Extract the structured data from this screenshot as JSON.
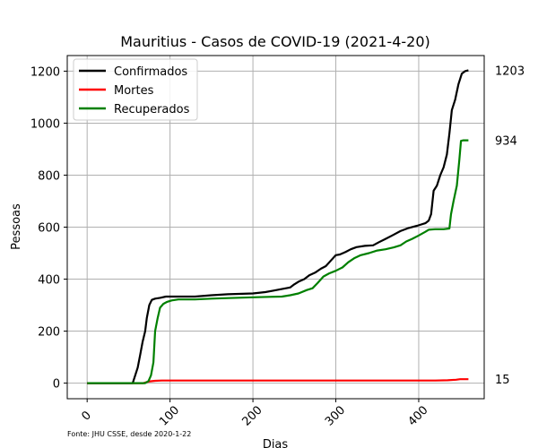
{
  "chart_data": {
    "type": "line",
    "title": "Mauritius - Casos de COVID-19 (2021-4-20)",
    "xlabel": "Dias",
    "ylabel": "Pessoas",
    "source_note": "Fonte: JHU CSSE, desde 2020-1-22",
    "xlim": [
      -24,
      479
    ],
    "ylim": [
      -60,
      1260
    ],
    "xticks": [
      0,
      100,
      200,
      300,
      400
    ],
    "yticks": [
      0,
      200,
      400,
      600,
      800,
      1000,
      1200
    ],
    "grid": true,
    "legend_position": "top-left",
    "series": [
      {
        "name": "Confirmados",
        "color": "#000000",
        "end_label": "1203",
        "points": [
          [
            0,
            0
          ],
          [
            55,
            0
          ],
          [
            58,
            30
          ],
          [
            61,
            60
          ],
          [
            64,
            110
          ],
          [
            67,
            160
          ],
          [
            70,
            200
          ],
          [
            72,
            250
          ],
          [
            75,
            300
          ],
          [
            78,
            320
          ],
          [
            82,
            325
          ],
          [
            88,
            328
          ],
          [
            95,
            333
          ],
          [
            110,
            333
          ],
          [
            130,
            333
          ],
          [
            150,
            338
          ],
          [
            170,
            342
          ],
          [
            200,
            345
          ],
          [
            215,
            350
          ],
          [
            225,
            356
          ],
          [
            235,
            362
          ],
          [
            245,
            368
          ],
          [
            250,
            380
          ],
          [
            255,
            390
          ],
          [
            262,
            400
          ],
          [
            268,
            415
          ],
          [
            275,
            425
          ],
          [
            282,
            440
          ],
          [
            288,
            450
          ],
          [
            295,
            475
          ],
          [
            300,
            492
          ],
          [
            305,
            495
          ],
          [
            312,
            505
          ],
          [
            318,
            515
          ],
          [
            325,
            523
          ],
          [
            335,
            528
          ],
          [
            345,
            530
          ],
          [
            352,
            542
          ],
          [
            360,
            555
          ],
          [
            368,
            568
          ],
          [
            378,
            585
          ],
          [
            388,
            597
          ],
          [
            398,
            605
          ],
          [
            408,
            615
          ],
          [
            412,
            625
          ],
          [
            415,
            650
          ],
          [
            418,
            740
          ],
          [
            422,
            760
          ],
          [
            426,
            800
          ],
          [
            430,
            830
          ],
          [
            434,
            880
          ],
          [
            437,
            960
          ],
          [
            440,
            1050
          ],
          [
            444,
            1090
          ],
          [
            448,
            1150
          ],
          [
            452,
            1190
          ],
          [
            456,
            1200
          ],
          [
            460,
            1203
          ]
        ]
      },
      {
        "name": "Mortes",
        "color": "#ff0000",
        "end_label": "15",
        "points": [
          [
            0,
            0
          ],
          [
            68,
            0
          ],
          [
            72,
            4
          ],
          [
            76,
            7
          ],
          [
            82,
            9
          ],
          [
            90,
            10
          ],
          [
            100,
            10
          ],
          [
            200,
            10
          ],
          [
            300,
            10
          ],
          [
            420,
            10
          ],
          [
            435,
            11
          ],
          [
            445,
            13
          ],
          [
            450,
            15
          ],
          [
            460,
            15
          ]
        ]
      },
      {
        "name": "Recuperados",
        "color": "#008000",
        "end_label": "934",
        "points": [
          [
            0,
            0
          ],
          [
            70,
            0
          ],
          [
            74,
            8
          ],
          [
            77,
            30
          ],
          [
            80,
            80
          ],
          [
            82,
            200
          ],
          [
            85,
            250
          ],
          [
            88,
            290
          ],
          [
            92,
            305
          ],
          [
            96,
            312
          ],
          [
            102,
            318
          ],
          [
            110,
            322
          ],
          [
            130,
            322
          ],
          [
            150,
            325
          ],
          [
            170,
            327
          ],
          [
            200,
            330
          ],
          [
            220,
            332
          ],
          [
            235,
            333
          ],
          [
            245,
            338
          ],
          [
            255,
            345
          ],
          [
            265,
            358
          ],
          [
            272,
            365
          ],
          [
            278,
            385
          ],
          [
            285,
            410
          ],
          [
            292,
            422
          ],
          [
            300,
            432
          ],
          [
            308,
            445
          ],
          [
            315,
            465
          ],
          [
            322,
            480
          ],
          [
            330,
            492
          ],
          [
            340,
            500
          ],
          [
            350,
            510
          ],
          [
            360,
            515
          ],
          [
            370,
            522
          ],
          [
            378,
            530
          ],
          [
            385,
            545
          ],
          [
            392,
            555
          ],
          [
            400,
            568
          ],
          [
            408,
            582
          ],
          [
            412,
            590
          ],
          [
            420,
            592
          ],
          [
            430,
            592
          ],
          [
            437,
            595
          ],
          [
            439,
            650
          ],
          [
            442,
            700
          ],
          [
            446,
            760
          ],
          [
            449,
            860
          ],
          [
            451,
            932
          ],
          [
            454,
            934
          ],
          [
            460,
            934
          ]
        ]
      }
    ]
  }
}
